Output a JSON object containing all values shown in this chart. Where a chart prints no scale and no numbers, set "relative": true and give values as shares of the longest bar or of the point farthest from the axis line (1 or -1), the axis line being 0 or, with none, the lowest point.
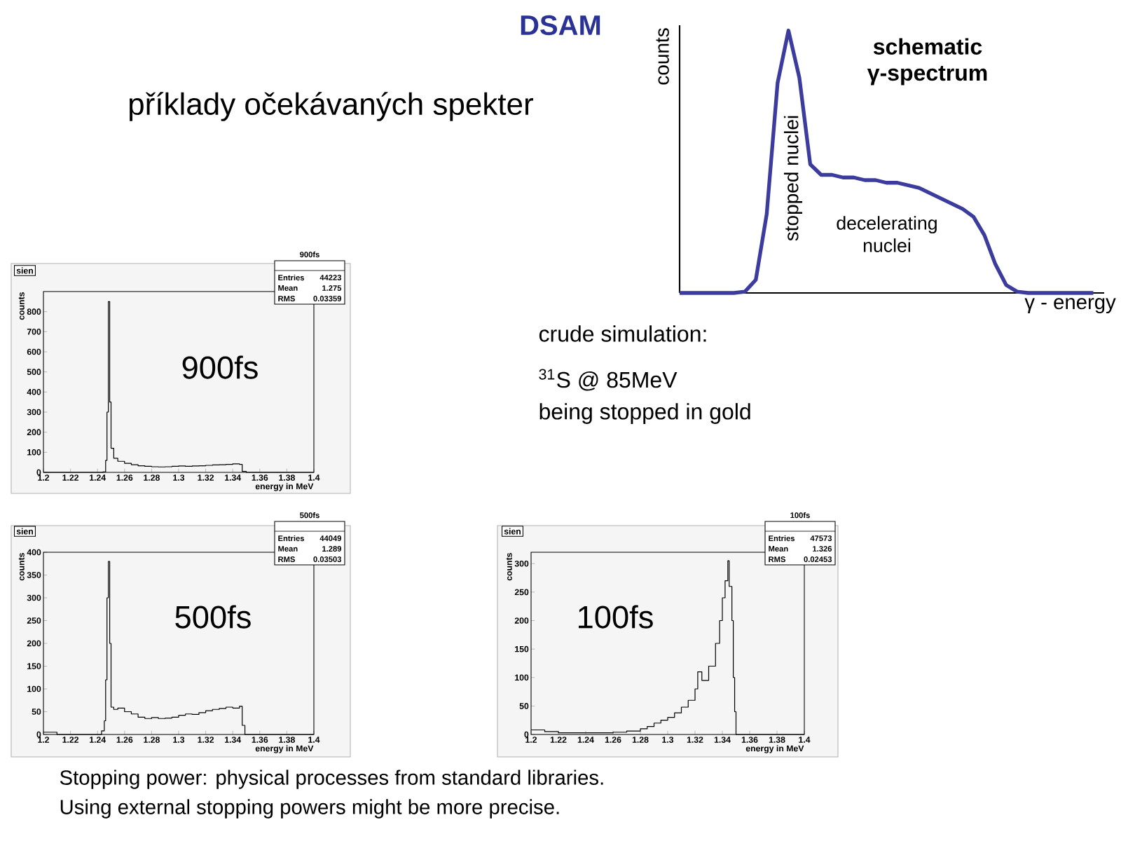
{
  "chart_data": [
    {
      "type": "line",
      "relative": true,
      "title": "schematic γ-spectrum",
      "xlabel": "γ - energy",
      "ylabel": "counts",
      "categories": [
        null,
        null,
        null,
        null,
        null,
        null,
        null,
        null,
        null,
        null,
        null,
        null,
        null,
        null,
        null,
        null,
        null,
        null,
        null,
        null,
        null,
        null,
        null,
        null,
        null,
        null,
        null,
        null,
        null,
        null,
        null,
        null,
        null,
        null,
        null,
        null,
        null,
        null,
        null
      ],
      "series": [
        {
          "color": "#3c3c9e",
          "values": [
            0,
            0,
            0,
            0,
            0,
            0,
            0.005,
            0.05,
            0.3,
            0.8,
            1,
            0.82,
            0.49,
            0.45,
            0.45,
            0.44,
            0.44,
            0.43,
            0.43,
            0.42,
            0.42,
            0.41,
            0.4,
            0.38,
            0.36,
            0.34,
            0.32,
            0.29,
            0.22,
            0.11,
            0.03,
            0.005,
            0,
            0,
            0,
            0,
            0,
            0,
            0
          ]
        }
      ],
      "annotations": [
        "DSAM",
        "příklady očekávaných spekter",
        "stopped nuclei",
        "decelerating nuclei",
        "crude simulation:",
        "$^{31}$S @ 85MeV",
        "being stopped in gold",
        "Stopping power: physical processes from standard libraries.",
        "Using external stopping powers might be more precise."
      ]
    },
    {
      "type": "step",
      "title": "900fs",
      "xlabel": "energy in MeV",
      "ylabel": "counts",
      "xlim": [
        1.2,
        1.4
      ],
      "xticks": [
        1.2,
        1.22,
        1.24,
        1.26,
        1.28,
        1.3,
        1.32,
        1.34,
        1.36,
        1.38,
        1.4
      ],
      "ylim": [
        0,
        900
      ],
      "yticks": [
        0,
        100,
        200,
        300,
        400,
        500,
        600,
        700,
        800
      ],
      "series": [
        {
          "color": "#000000",
          "x": [
            1.2,
            1.24,
            1.244,
            1.246,
            1.247,
            1.248,
            1.249,
            1.25,
            1.252,
            1.255,
            1.26,
            1.265,
            1.27,
            1.275,
            1.28,
            1.285,
            1.29,
            1.295,
            1.3,
            1.305,
            1.31,
            1.315,
            1.32,
            1.325,
            1.33,
            1.335,
            1.34,
            1.345,
            1.347,
            1.35,
            1.4
          ],
          "values": [
            0,
            0,
            2,
            60,
            300,
            850,
            350,
            120,
            70,
            55,
            45,
            38,
            33,
            30,
            28,
            27,
            28,
            30,
            32,
            30,
            32,
            33,
            35,
            37,
            38,
            40,
            42,
            40,
            5,
            0,
            0
          ]
        }
      ],
      "annotations": [
        "sien",
        "900fs",
        "Entries",
        "44223",
        "Mean",
        "1.275",
        "RMS",
        "0.03359"
      ]
    },
    {
      "type": "step",
      "title": "500fs",
      "xlabel": "energy in MeV",
      "ylabel": "counts",
      "xlim": [
        1.2,
        1.4
      ],
      "xticks": [
        1.2,
        1.22,
        1.24,
        1.26,
        1.28,
        1.3,
        1.32,
        1.34,
        1.36,
        1.38,
        1.4
      ],
      "ylim": [
        0,
        400
      ],
      "yticks": [
        0,
        50,
        100,
        150,
        200,
        250,
        300,
        350,
        400
      ],
      "series": [
        {
          "color": "#000000",
          "x": [
            1.2,
            1.21,
            1.24,
            1.243,
            1.245,
            1.246,
            1.247,
            1.248,
            1.249,
            1.25,
            1.252,
            1.255,
            1.26,
            1.265,
            1.27,
            1.275,
            1.28,
            1.285,
            1.29,
            1.295,
            1.3,
            1.305,
            1.31,
            1.315,
            1.32,
            1.325,
            1.33,
            1.335,
            1.34,
            1.345,
            1.347,
            1.349,
            1.4
          ],
          "values": [
            5,
            0,
            0,
            8,
            30,
            120,
            300,
            380,
            200,
            60,
            55,
            58,
            50,
            45,
            38,
            35,
            37,
            35,
            36,
            38,
            42,
            45,
            44,
            48,
            52,
            55,
            57,
            60,
            58,
            62,
            20,
            0,
            0
          ]
        }
      ],
      "annotations": [
        "sien",
        "500fs",
        "Entries",
        "44049",
        "Mean",
        "1.289",
        "RMS",
        "0.03503"
      ]
    },
    {
      "type": "step",
      "title": "100fs",
      "xlabel": "energy in MeV",
      "ylabel": "counts",
      "xlim": [
        1.2,
        1.4
      ],
      "xticks": [
        1.2,
        1.22,
        1.24,
        1.26,
        1.28,
        1.3,
        1.32,
        1.34,
        1.36,
        1.38,
        1.4
      ],
      "ylim": [
        0,
        320
      ],
      "yticks": [
        0,
        50,
        100,
        150,
        200,
        250,
        300
      ],
      "series": [
        {
          "color": "#000000",
          "x": [
            1.2,
            1.21,
            1.22,
            1.24,
            1.26,
            1.27,
            1.28,
            1.285,
            1.29,
            1.295,
            1.3,
            1.305,
            1.31,
            1.315,
            1.32,
            1.322,
            1.325,
            1.33,
            1.335,
            1.338,
            1.34,
            1.342,
            1.344,
            1.345,
            1.347,
            1.348,
            1.349,
            1.35,
            1.4
          ],
          "values": [
            8,
            5,
            3,
            3,
            4,
            6,
            10,
            14,
            20,
            25,
            30,
            38,
            48,
            60,
            80,
            110,
            95,
            120,
            160,
            200,
            240,
            270,
            305,
            260,
            200,
            100,
            40,
            0,
            0
          ]
        }
      ],
      "annotations": [
        "sien",
        "100fs",
        "Entries",
        "47573",
        "Mean",
        "1.326",
        "RMS",
        "0.02453"
      ]
    }
  ]
}
